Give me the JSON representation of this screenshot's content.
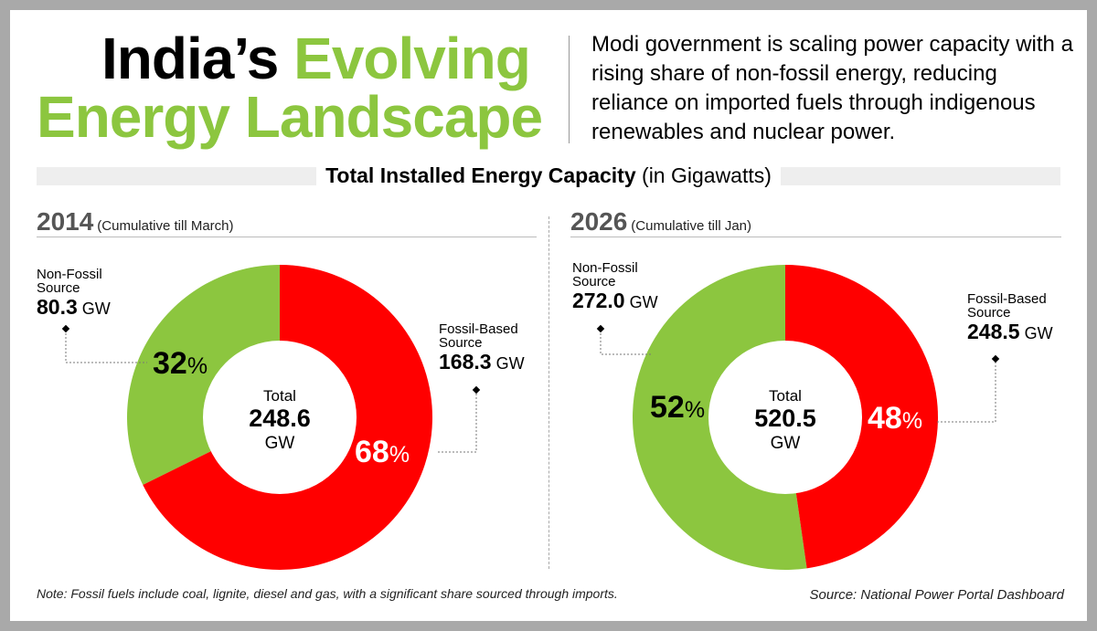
{
  "header": {
    "title_part1": "India’s ",
    "title_part2": "Evolving",
    "title_line2": "Energy Landscape",
    "subtitle": "Modi government is scaling power capacity with a rising share of non-fossil energy, reducing reliance on imported fuels through indigenous renewables and nuclear power."
  },
  "section": {
    "title_bold": "Total Installed Energy Capacity",
    "title_unit": "(in Gigawatts)"
  },
  "colors": {
    "non_fossil": "#8cc63f",
    "fossil": "#ff0000",
    "title_green": "#8cc63f"
  },
  "chart_data": [
    {
      "type": "pie",
      "year": "2014",
      "period_note": "(Cumulative till March)",
      "center_label": {
        "line1": "Total",
        "value": "248.6",
        "unit": "GW"
      },
      "total_gw": 248.6,
      "slices": [
        {
          "name": "Non-Fossil Source",
          "name_line1": "Non-Fossil",
          "name_line2": "Source",
          "value": 80.3,
          "value_text": "80.3",
          "unit": "GW",
          "percent": 32,
          "percent_text": "32",
          "color": "#8cc63f"
        },
        {
          "name": "Fossil-Based Source",
          "name_line1": "Fossil-Based",
          "name_line2": "Source",
          "value": 168.3,
          "value_text": "168.3",
          "unit": "GW",
          "percent": 68,
          "percent_text": "68",
          "color": "#ff0000"
        }
      ]
    },
    {
      "type": "pie",
      "year": "2026",
      "period_note": "(Cumulative till Jan)",
      "center_label": {
        "line1": "Total",
        "value": "520.5",
        "unit": "GW"
      },
      "total_gw": 520.5,
      "slices": [
        {
          "name": "Non-Fossil Source",
          "name_line1": "Non-Fossil",
          "name_line2": "Source",
          "value": 272.0,
          "value_text": "272.0",
          "unit": "GW",
          "percent": 52,
          "percent_text": "52",
          "color": "#8cc63f"
        },
        {
          "name": "Fossil-Based Source",
          "name_line1": "Fossil-Based",
          "name_line2": "Source",
          "value": 248.5,
          "value_text": "248.5",
          "unit": "GW",
          "percent": 48,
          "percent_text": "48",
          "color": "#ff0000"
        }
      ]
    }
  ],
  "footer": {
    "note": "Note: Fossil fuels include coal, lignite, diesel and gas, with a significant share sourced through imports.",
    "source": "Source: National Power Portal Dashboard"
  }
}
